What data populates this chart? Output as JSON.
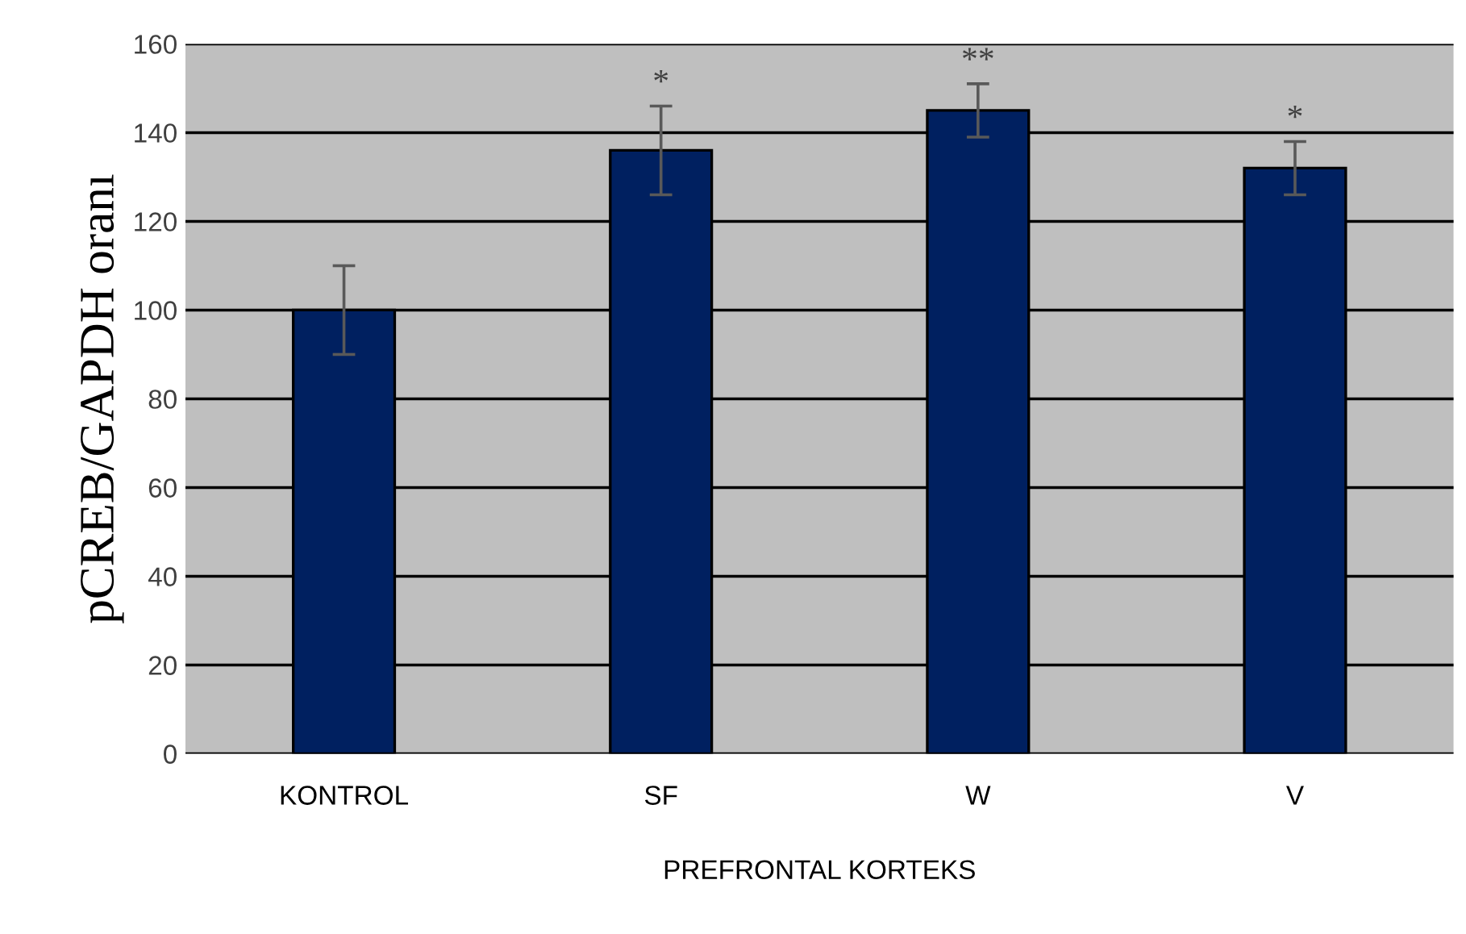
{
  "chart_data": {
    "type": "bar",
    "categories": [
      "KONTROL",
      "SF",
      "W",
      "V"
    ],
    "values": [
      100,
      136,
      145,
      132
    ],
    "errors": [
      10,
      10,
      6,
      6
    ],
    "color": "#002060",
    "ylabel": "pCREB/GAPDH oranı",
    "xlabel": "PREFRONTAL KORTEKS",
    "ylim": [
      0,
      160
    ],
    "yticks": [
      0,
      20,
      40,
      60,
      80,
      100,
      120,
      140,
      160
    ],
    "grid": "y",
    "annotations": [
      {
        "text": "*",
        "x": "SF",
        "y": 146
      },
      {
        "text": "**",
        "x": "W",
        "y": 151
      },
      {
        "text": "*",
        "x": "V",
        "y": 138
      }
    ]
  }
}
